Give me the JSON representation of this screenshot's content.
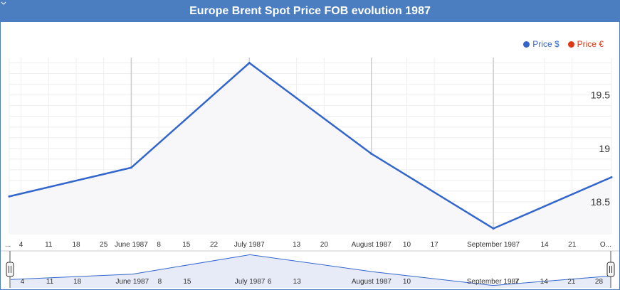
{
  "title": "Europe Brent Spot Price FOB evolution 1987",
  "legend": [
    {
      "label": "Price $",
      "color": "#3366cc"
    },
    {
      "label": "Price €",
      "color": "#dc3912"
    }
  ],
  "colors": {
    "line": "#3366cc",
    "accent": "#4a7ec0"
  },
  "chart_data": {
    "type": "line",
    "title": "Europe Brent Spot Price FOB evolution 1987",
    "series": [
      {
        "name": "Price $",
        "x": [
          "1987-05-01",
          "1987-06-01",
          "1987-07-01",
          "1987-08-01",
          "1987-09-01",
          "1987-10-01"
        ],
        "values": [
          18.55,
          18.82,
          19.8,
          18.95,
          18.25,
          18.73
        ]
      }
    ],
    "main_ticks": [
      {
        "date": "1987-05-01",
        "label": "..."
      },
      {
        "date": "1987-05-04",
        "label": "4"
      },
      {
        "date": "1987-05-11",
        "label": "11"
      },
      {
        "date": "1987-05-18",
        "label": "18"
      },
      {
        "date": "1987-05-25",
        "label": "25"
      },
      {
        "date": "1987-06-01",
        "label": "June 1987"
      },
      {
        "date": "1987-06-08",
        "label": "8"
      },
      {
        "date": "1987-06-15",
        "label": "15"
      },
      {
        "date": "1987-06-22",
        "label": "22"
      },
      {
        "date": "1987-07-01",
        "label": "July 1987"
      },
      {
        "date": "1987-07-13",
        "label": "13"
      },
      {
        "date": "1987-07-20",
        "label": "20"
      },
      {
        "date": "1987-08-01",
        "label": "August 1987"
      },
      {
        "date": "1987-08-10",
        "label": "10"
      },
      {
        "date": "1987-08-17",
        "label": "17"
      },
      {
        "date": "1987-09-01",
        "label": "September 1987"
      },
      {
        "date": "1987-09-14",
        "label": "14"
      },
      {
        "date": "1987-09-21",
        "label": "21"
      },
      {
        "date": "1987-10-01",
        "label": "O..."
      }
    ],
    "overview_ticks": [
      {
        "date": "1987-05-04",
        "label": "4"
      },
      {
        "date": "1987-05-11",
        "label": "11"
      },
      {
        "date": "1987-05-18",
        "label": "18"
      },
      {
        "date": "1987-06-01",
        "label": "June 1987"
      },
      {
        "date": "1987-06-08",
        "label": "8"
      },
      {
        "date": "1987-06-15",
        "label": "15"
      },
      {
        "date": "1987-07-01",
        "label": "July 1987"
      },
      {
        "date": "1987-07-06",
        "label": "6"
      },
      {
        "date": "1987-07-13",
        "label": "13"
      },
      {
        "date": "1987-08-01",
        "label": "August 1987"
      },
      {
        "date": "1987-08-10",
        "label": "10"
      },
      {
        "date": "1987-09-01",
        "label": "September 1987"
      },
      {
        "date": "1987-09-07",
        "label": "7"
      },
      {
        "date": "1987-09-14",
        "label": "14"
      },
      {
        "date": "1987-09-21",
        "label": "21"
      },
      {
        "date": "1987-09-28",
        "label": "28"
      }
    ],
    "y_ticks": [
      {
        "value": 18.5,
        "label": "18.5"
      },
      {
        "value": 19,
        "label": "19"
      },
      {
        "value": 19.5,
        "label": "19.5"
      }
    ],
    "xlim": [
      "1987-05-01",
      "1987-10-01"
    ],
    "ylim": [
      18.2,
      19.85
    ],
    "grid": true,
    "legend_position": "top-right"
  }
}
